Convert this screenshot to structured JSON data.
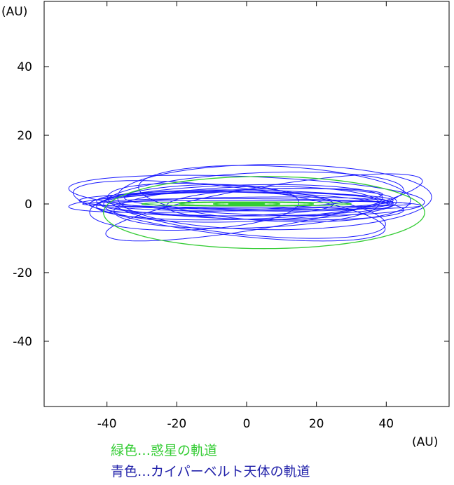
{
  "chart_data": {
    "type": "line",
    "title": "",
    "xlabel": "(AU)",
    "ylabel": "(AU)",
    "xlim": [
      -58,
      58
    ],
    "ylim": [
      -59,
      59
    ],
    "x_ticks": [
      -40,
      -20,
      0,
      20,
      40
    ],
    "y_ticks": [
      40,
      20,
      0,
      -20,
      -40
    ],
    "grid": false,
    "series": [
      {
        "name": "緑色…惑星の軌道",
        "color": "#33cc33",
        "orbits": [
          {
            "cx": 0.0,
            "cy": 0.0,
            "rx": 1.2,
            "ry": 0.05,
            "rot": 0.0
          },
          {
            "cx": 0.0,
            "cy": 0.0,
            "rx": 5.2,
            "ry": 0.15,
            "rot": 0.0
          },
          {
            "cx": 0.0,
            "cy": 0.0,
            "rx": 9.5,
            "ry": 0.35,
            "rot": 0.0
          },
          {
            "cx": 0.0,
            "cy": 0.0,
            "rx": 19.2,
            "ry": 0.5,
            "rot": 0.0
          },
          {
            "cx": 0.0,
            "cy": 0.0,
            "rx": 30.0,
            "ry": 0.6,
            "rot": 0.0
          },
          {
            "cx": 5.0,
            "cy": -2.5,
            "rx": 46.0,
            "ry": 10.5,
            "rot": 0.0
          }
        ]
      },
      {
        "name": "青色…カイパーベルト天体の軌道",
        "color": "#1a1aff",
        "orbits": [
          {
            "cx": 0.0,
            "cy": 0.0,
            "rx": 42.0,
            "ry": 3.5,
            "rot": 0.0
          },
          {
            "cx": -2.0,
            "cy": 0.5,
            "rx": 41.0,
            "ry": 5.0,
            "rot": 0.03
          },
          {
            "cx": 1.0,
            "cy": -0.5,
            "rx": 44.0,
            "ry": 4.0,
            "rot": -0.03
          },
          {
            "cx": -3.0,
            "cy": 1.0,
            "rx": 45.0,
            "ry": 2.5,
            "rot": 0.0
          },
          {
            "cx": 2.0,
            "cy": 0.0,
            "rx": 40.0,
            "ry": 2.0,
            "rot": 0.01
          },
          {
            "cx": 5.0,
            "cy": 0.0,
            "rx": 45.0,
            "ry": 1.5,
            "rot": -0.01
          },
          {
            "cx": -6.0,
            "cy": 1.0,
            "rx": 45.0,
            "ry": 3.0,
            "rot": 0.04
          },
          {
            "cx": 0.0,
            "cy": 0.0,
            "rx": 47.0,
            "ry": 1.0,
            "rot": 0.0
          },
          {
            "cx": 0.0,
            "cy": 2.5,
            "rx": 51.0,
            "ry": 5.5,
            "rot": -0.04
          },
          {
            "cx": 2.0,
            "cy": 2.0,
            "rx": 43.0,
            "ry": 7.0,
            "rot": 0.05
          },
          {
            "cx": 8.0,
            "cy": 3.0,
            "rx": 39.0,
            "ry": 8.0,
            "rot": -0.05
          },
          {
            "cx": 8.0,
            "cy": 2.0,
            "rx": 45.0,
            "ry": 9.5,
            "rot": 0.0
          },
          {
            "cx": 0.0,
            "cy": -2.0,
            "rx": 40.0,
            "ry": 7.0,
            "rot": -0.1
          },
          {
            "cx": 5.0,
            "cy": -1.0,
            "rx": 46.0,
            "ry": 6.0,
            "rot": 0.17
          },
          {
            "cx": -5.0,
            "cy": -2.0,
            "rx": 45.0,
            "ry": 7.0,
            "rot": -0.12
          },
          {
            "cx": -10.0,
            "cy": 0.0,
            "rx": 35.0,
            "ry": 3.5,
            "rot": 0.0
          },
          {
            "cx": 10.0,
            "cy": 0.0,
            "rx": 33.0,
            "ry": 4.5,
            "rot": 0.02
          },
          {
            "cx": 0.0,
            "cy": -1.0,
            "rx": 38.0,
            "ry": 6.0,
            "rot": 0.03
          },
          {
            "cx": -15.0,
            "cy": -1.0,
            "rx": 30.0,
            "ry": 6.5,
            "rot": 0.05
          },
          {
            "cx": 3.0,
            "cy": 1.0,
            "rx": 38.0,
            "ry": 3.0,
            "rot": -0.02
          }
        ]
      }
    ]
  },
  "axis_unit_labels": {
    "y": "(AU)",
    "x": "(AU)"
  },
  "legend": {
    "planet": {
      "text": "緑色…惑星の軌道",
      "color": "#33cc33"
    },
    "kbo": {
      "text": "青色…カイパーベルト天体の軌道",
      "color": "#2222aa"
    }
  }
}
